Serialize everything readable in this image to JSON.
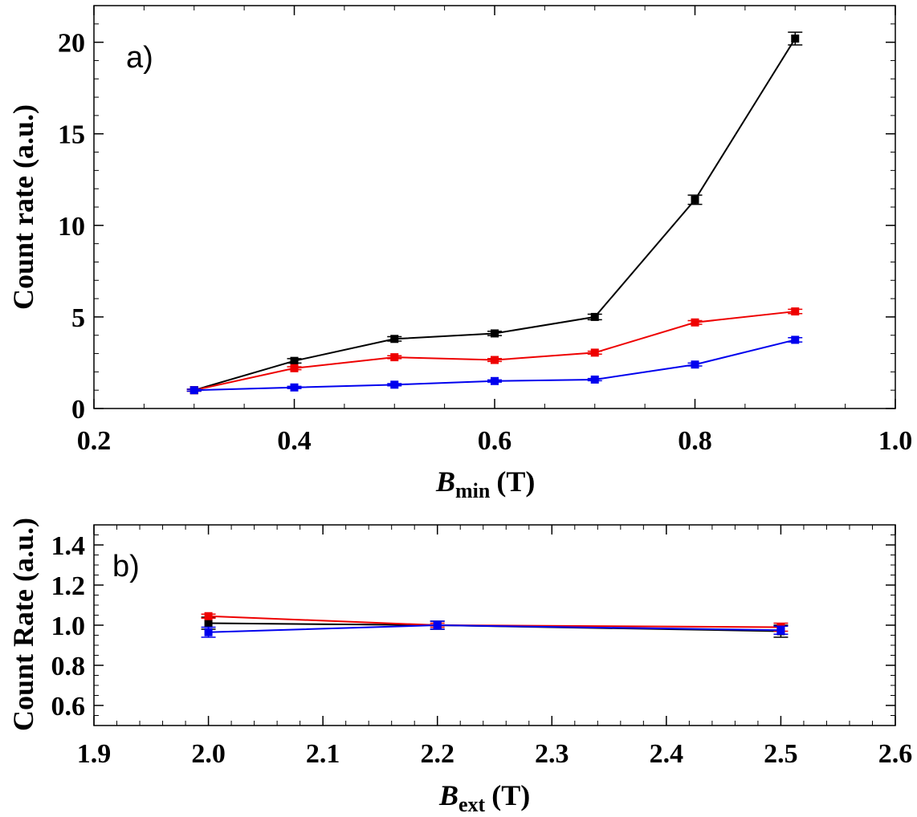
{
  "chart_data": [
    {
      "id": "a",
      "type": "line",
      "panel_label": "a)",
      "xlabel_var": "B",
      "xlabel_sub": "min",
      "xlabel_unit": "(T)",
      "ylabel": "Count rate (a.u.)",
      "xlim": [
        0.2,
        1.0
      ],
      "ylim": [
        0,
        22
      ],
      "xticks": [
        {
          "v": 0.2,
          "label": "0.2"
        },
        {
          "v": 0.4,
          "label": "0.4"
        },
        {
          "v": 0.6,
          "label": "0.6"
        },
        {
          "v": 0.8,
          "label": "0.8"
        },
        {
          "v": 1.0,
          "label": "1.0"
        }
      ],
      "yticks": [
        {
          "v": 0,
          "label": "0"
        },
        {
          "v": 5,
          "label": "5"
        },
        {
          "v": 10,
          "label": "10"
        },
        {
          "v": 15,
          "label": "15"
        },
        {
          "v": 20,
          "label": "20"
        }
      ],
      "x_minor_step": 0.05,
      "y_minor_step": 1,
      "series": [
        {
          "name": "black",
          "color": "#000000",
          "x": [
            0.3,
            0.4,
            0.5,
            0.6,
            0.7,
            0.8,
            0.9
          ],
          "y": [
            1.0,
            2.6,
            3.8,
            4.1,
            5.0,
            11.4,
            20.2
          ],
          "err": [
            0.05,
            0.12,
            0.12,
            0.12,
            0.15,
            0.25,
            0.35
          ]
        },
        {
          "name": "red",
          "color": "#ee0000",
          "x": [
            0.3,
            0.4,
            0.5,
            0.6,
            0.7,
            0.8,
            0.9
          ],
          "y": [
            1.0,
            2.2,
            2.8,
            2.65,
            3.05,
            4.7,
            5.3
          ],
          "err": [
            0.05,
            0.08,
            0.08,
            0.08,
            0.08,
            0.1,
            0.12
          ]
        },
        {
          "name": "blue",
          "color": "#0000ee",
          "x": [
            0.3,
            0.4,
            0.5,
            0.6,
            0.7,
            0.8,
            0.9
          ],
          "y": [
            1.0,
            1.15,
            1.3,
            1.5,
            1.58,
            2.4,
            3.75
          ],
          "err": [
            0.05,
            0.06,
            0.06,
            0.06,
            0.06,
            0.08,
            0.12
          ]
        }
      ]
    },
    {
      "id": "b",
      "type": "line",
      "panel_label": "b)",
      "xlabel_var": "B",
      "xlabel_sub": "ext",
      "xlabel_unit": "(T)",
      "ylabel": "Count Rate (a.u.)",
      "xlim": [
        1.9,
        2.6
      ],
      "ylim": [
        0.5,
        1.5
      ],
      "xticks": [
        {
          "v": 1.9,
          "label": "1.9"
        },
        {
          "v": 2.0,
          "label": "2.0"
        },
        {
          "v": 2.1,
          "label": "2.1"
        },
        {
          "v": 2.2,
          "label": "2.2"
        },
        {
          "v": 2.3,
          "label": "2.3"
        },
        {
          "v": 2.4,
          "label": "2.4"
        },
        {
          "v": 2.5,
          "label": "2.5"
        },
        {
          "v": 2.6,
          "label": "2.6"
        }
      ],
      "yticks": [
        {
          "v": 0.6,
          "label": "0.6"
        },
        {
          "v": 0.8,
          "label": "0.8"
        },
        {
          "v": 1.0,
          "label": "1.0"
        },
        {
          "v": 1.2,
          "label": "1.2"
        },
        {
          "v": 1.4,
          "label": "1.4"
        }
      ],
      "x_minor_step": 0.02,
      "y_minor_step": 0.05,
      "series": [
        {
          "name": "black",
          "color": "#000000",
          "x": [
            2.0,
            2.2,
            2.5
          ],
          "y": [
            1.01,
            1.0,
            0.97
          ],
          "err": [
            0.03,
            0.02,
            0.03
          ]
        },
        {
          "name": "red",
          "color": "#ee0000",
          "x": [
            2.0,
            2.2,
            2.5
          ],
          "y": [
            1.045,
            1.0,
            0.99
          ],
          "err": [
            0.01,
            0.01,
            0.02
          ]
        },
        {
          "name": "blue",
          "color": "#0000ee",
          "x": [
            2.0,
            2.2,
            2.5
          ],
          "y": [
            0.965,
            1.0,
            0.975
          ],
          "err": [
            0.025,
            0.02,
            0.02
          ]
        }
      ]
    }
  ]
}
